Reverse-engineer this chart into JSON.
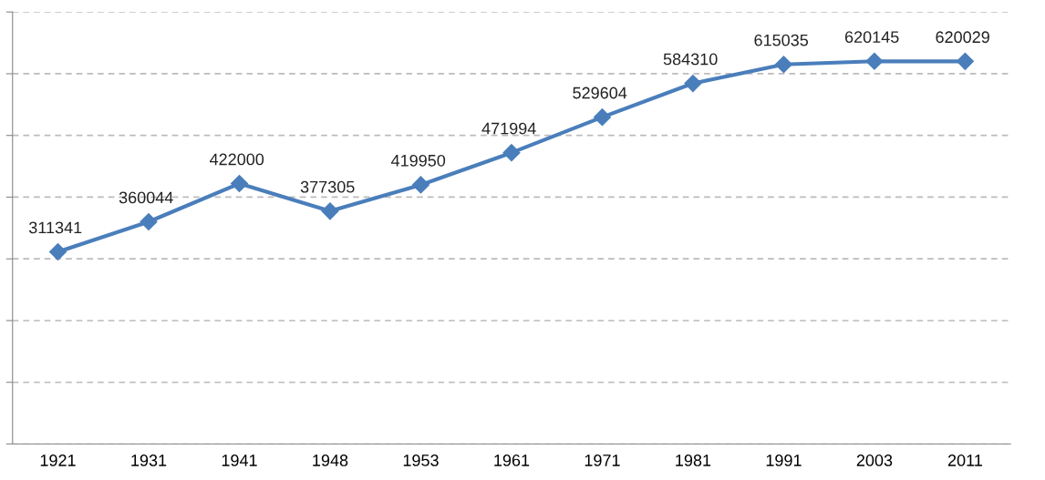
{
  "chart_data": {
    "type": "line",
    "categories": [
      "1921",
      "1931",
      "1941",
      "1948",
      "1953",
      "1961",
      "1971",
      "1981",
      "1991",
      "2003",
      "2011"
    ],
    "series": [
      {
        "color": "#4a7ebb",
        "values": [
          311341,
          360044,
          422000,
          377305,
          419950,
          471994,
          529604,
          584310,
          615035,
          620145,
          620029
        ]
      }
    ],
    "ylim": [
      0,
      700000
    ],
    "yticks": [
      {
        "value": 0,
        "label": null
      },
      {
        "value": 100000,
        "label": null
      },
      {
        "value": 200000,
        "label": null
      },
      {
        "value": 300000,
        "label": null
      },
      {
        "value": 400000,
        "label": null
      },
      {
        "value": 500000,
        "label": null
      },
      {
        "value": 600000,
        "label": null
      },
      {
        "value": 700000,
        "label": null
      }
    ],
    "tick_labels": "x",
    "grid": "y",
    "marker": "diamond",
    "line_style": "solid",
    "data_labels": true
  }
}
